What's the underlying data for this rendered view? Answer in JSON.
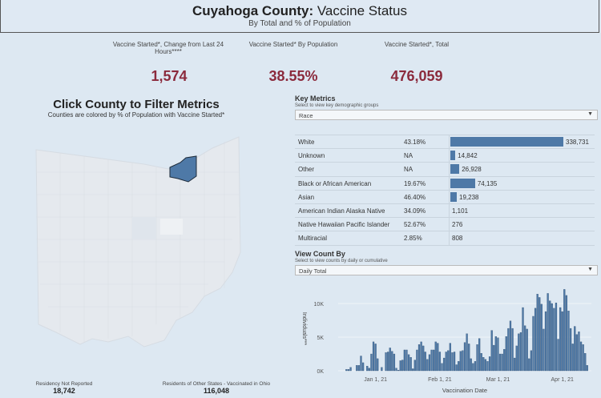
{
  "header": {
    "title_bold": "Cuyahoga County:",
    "title_rest": " Vaccine Status",
    "subtitle": "By Total and % of Population"
  },
  "kpis": [
    {
      "label": "Vaccine Started*, Change from Last 24 Hours****",
      "value": "1,574"
    },
    {
      "label": "Vaccine Started* By Population",
      "value": "38.55%"
    },
    {
      "label": "Vaccine Started*, Total",
      "value": "476,059"
    }
  ],
  "map": {
    "title": "Click County to Filter Metrics",
    "subtitle": "Counties are colored by % of Population with Vaccine Started*",
    "selected_county": "Cuyahoga",
    "selected_color": "#4e79a7"
  },
  "key_metrics": {
    "title": "Key Metrics",
    "hint": "Select to view key demographic groups",
    "selected": "Race",
    "rows": [
      {
        "name": "White",
        "pct": "43.18%",
        "count": "338,731",
        "value": 338731
      },
      {
        "name": "Unknown",
        "pct": "NA",
        "count": "14,842",
        "value": 14842
      },
      {
        "name": "Other",
        "pct": "NA",
        "count": "26,928",
        "value": 26928
      },
      {
        "name": "Black or African American",
        "pct": "19.67%",
        "count": "74,135",
        "value": 74135
      },
      {
        "name": "Asian",
        "pct": "46.40%",
        "count": "19,238",
        "value": 19238
      },
      {
        "name": "American Indian Alaska Native",
        "pct": "34.09%",
        "count": "1,101",
        "value": 1101
      },
      {
        "name": "Native Hawaiian Pacific Islander",
        "pct": "52.67%",
        "count": "276",
        "value": 276
      },
      {
        "name": "Multiracial",
        "pct": "2.85%",
        "count": "808",
        "value": 808
      }
    ]
  },
  "view_count": {
    "title": "View Count By",
    "hint": "Select to view counts by daily or cumulative",
    "selected": "Daily Total"
  },
  "footer": [
    {
      "label": "Residency Not Reported",
      "value": "18,742"
    },
    {
      "label": "Residents of Other States - Vaccinated in Ohio",
      "value": "116,048"
    }
  ],
  "chart_data": {
    "type": "bar",
    "ylabel": "Individuals***",
    "xlabel": "Vaccination Date",
    "color": "#4e79a7",
    "yticks": [
      "0K",
      "5K",
      "10K"
    ],
    "ylim": [
      0,
      12500
    ],
    "xticks": [
      {
        "date": "2021-01-01",
        "label": "Jan 1, 21"
      },
      {
        "date": "2021-02-01",
        "label": "Feb 1, 21"
      },
      {
        "date": "2021-03-01",
        "label": "Mar 1, 21"
      },
      {
        "date": "2021-04-01",
        "label": "Apr 1, 21"
      }
    ],
    "xlim": [
      "2020-12-14",
      "2021-04-15"
    ],
    "points": [
      [
        "2020-12-18",
        200
      ],
      [
        "2020-12-19",
        200
      ],
      [
        "2020-12-20",
        500
      ],
      [
        "2020-12-23",
        800
      ],
      [
        "2020-12-24",
        800
      ],
      [
        "2020-12-25",
        2200
      ],
      [
        "2020-12-26",
        1200
      ],
      [
        "2020-12-28",
        700
      ],
      [
        "2020-12-29",
        400
      ],
      [
        "2020-12-30",
        2500
      ],
      [
        "2020-12-31",
        4300
      ],
      [
        "2021-01-01",
        4000
      ],
      [
        "2021-01-02",
        1800
      ],
      [
        "2021-01-04",
        500
      ],
      [
        "2021-01-06",
        2700
      ],
      [
        "2021-01-07",
        2800
      ],
      [
        "2021-01-08",
        3400
      ],
      [
        "2021-01-09",
        2900
      ],
      [
        "2021-01-10",
        2500
      ],
      [
        "2021-01-11",
        400
      ],
      [
        "2021-01-12",
        100
      ],
      [
        "2021-01-13",
        1500
      ],
      [
        "2021-01-14",
        1600
      ],
      [
        "2021-01-15",
        3100
      ],
      [
        "2021-01-16",
        3100
      ],
      [
        "2021-01-17",
        2400
      ],
      [
        "2021-01-18",
        2000
      ],
      [
        "2021-01-19",
        300
      ],
      [
        "2021-01-20",
        1600
      ],
      [
        "2021-01-21",
        3100
      ],
      [
        "2021-01-22",
        3900
      ],
      [
        "2021-01-23",
        4300
      ],
      [
        "2021-01-24",
        3700
      ],
      [
        "2021-01-25",
        2800
      ],
      [
        "2021-01-26",
        1700
      ],
      [
        "2021-01-27",
        2400
      ],
      [
        "2021-01-28",
        3100
      ],
      [
        "2021-01-29",
        3100
      ],
      [
        "2021-01-30",
        4300
      ],
      [
        "2021-01-31",
        4100
      ],
      [
        "2021-02-01",
        2800
      ],
      [
        "2021-02-02",
        1100
      ],
      [
        "2021-02-03",
        1900
      ],
      [
        "2021-02-04",
        2800
      ],
      [
        "2021-02-05",
        3000
      ],
      [
        "2021-02-06",
        4100
      ],
      [
        "2021-02-07",
        2700
      ],
      [
        "2021-02-08",
        2800
      ],
      [
        "2021-02-09",
        900
      ],
      [
        "2021-02-10",
        1400
      ],
      [
        "2021-02-11",
        2900
      ],
      [
        "2021-02-12",
        3000
      ],
      [
        "2021-02-13",
        4200
      ],
      [
        "2021-02-14",
        5500
      ],
      [
        "2021-02-15",
        4000
      ],
      [
        "2021-02-16",
        1800
      ],
      [
        "2021-02-17",
        1100
      ],
      [
        "2021-02-18",
        1400
      ],
      [
        "2021-02-19",
        3900
      ],
      [
        "2021-02-20",
        4800
      ],
      [
        "2021-02-21",
        2600
      ],
      [
        "2021-02-22",
        2000
      ],
      [
        "2021-02-23",
        1700
      ],
      [
        "2021-02-24",
        1400
      ],
      [
        "2021-02-25",
        2100
      ],
      [
        "2021-02-26",
        6000
      ],
      [
        "2021-02-27",
        3800
      ],
      [
        "2021-02-28",
        5100
      ],
      [
        "2021-03-01",
        4900
      ],
      [
        "2021-03-02",
        2500
      ],
      [
        "2021-03-03",
        2500
      ],
      [
        "2021-03-04",
        3200
      ],
      [
        "2021-03-05",
        5100
      ],
      [
        "2021-03-06",
        6300
      ],
      [
        "2021-03-07",
        7400
      ],
      [
        "2021-03-08",
        6300
      ],
      [
        "2021-03-09",
        1900
      ],
      [
        "2021-03-10",
        3700
      ],
      [
        "2021-03-11",
        5500
      ],
      [
        "2021-03-12",
        5700
      ],
      [
        "2021-03-13",
        9400
      ],
      [
        "2021-03-14",
        6700
      ],
      [
        "2021-03-15",
        6200
      ],
      [
        "2021-03-16",
        1800
      ],
      [
        "2021-03-17",
        3000
      ],
      [
        "2021-03-18",
        8100
      ],
      [
        "2021-03-19",
        9300
      ],
      [
        "2021-03-20",
        11400
      ],
      [
        "2021-03-21",
        10900
      ],
      [
        "2021-03-22",
        9900
      ],
      [
        "2021-03-23",
        6200
      ],
      [
        "2021-03-24",
        8800
      ],
      [
        "2021-03-25",
        11500
      ],
      [
        "2021-03-26",
        10400
      ],
      [
        "2021-03-27",
        10000
      ],
      [
        "2021-03-28",
        9300
      ],
      [
        "2021-03-29",
        10100
      ],
      [
        "2021-03-30",
        4700
      ],
      [
        "2021-03-31",
        9400
      ],
      [
        "2021-04-01",
        8800
      ],
      [
        "2021-04-02",
        12100
      ],
      [
        "2021-04-03",
        11200
      ],
      [
        "2021-04-04",
        8900
      ],
      [
        "2021-04-05",
        6300
      ],
      [
        "2021-04-06",
        4000
      ],
      [
        "2021-04-07",
        6600
      ],
      [
        "2021-04-08",
        5400
      ],
      [
        "2021-04-09",
        5800
      ],
      [
        "2021-04-10",
        4300
      ],
      [
        "2021-04-11",
        3900
      ],
      [
        "2021-04-12",
        2600
      ],
      [
        "2021-04-13",
        800
      ]
    ]
  }
}
